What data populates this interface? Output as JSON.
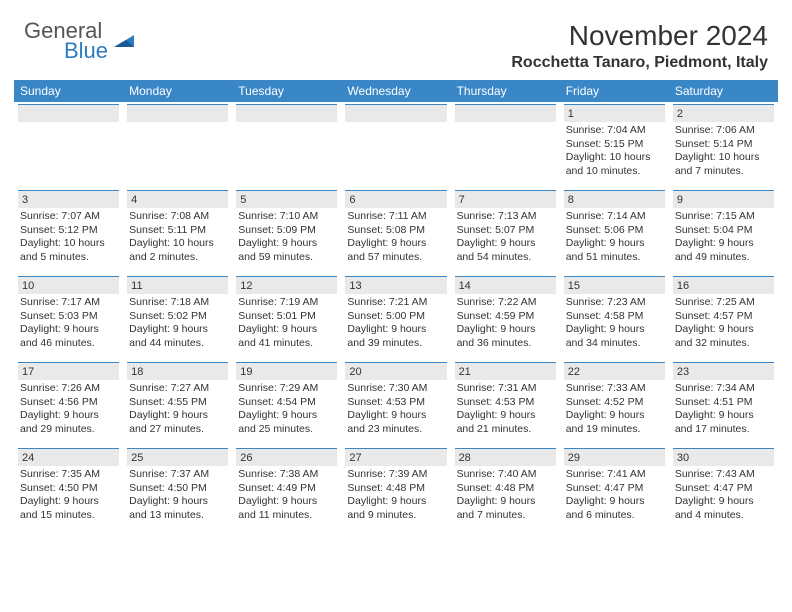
{
  "logo": {
    "general": "General",
    "blue": "Blue"
  },
  "header": {
    "month_title": "November 2024",
    "location": "Rocchetta Tanaro, Piedmont, Italy"
  },
  "colors": {
    "header_bar": "#3a87c8",
    "number_bar_bg": "#e9e9e9",
    "border_top": "#3a87c8",
    "text": "#333333",
    "logo_gray": "#555555",
    "logo_blue": "#2d7bc0",
    "background": "#ffffff"
  },
  "typography": {
    "month_title_fontsize": 28,
    "location_fontsize": 16,
    "location_weight": 700,
    "weekday_fontsize": 12,
    "daynum_fontsize": 11,
    "cell_fontsize": 10.5
  },
  "weekdays": [
    "Sunday",
    "Monday",
    "Tuesday",
    "Wednesday",
    "Thursday",
    "Friday",
    "Saturday"
  ],
  "weeks": [
    [
      {
        "day": "",
        "lines": []
      },
      {
        "day": "",
        "lines": []
      },
      {
        "day": "",
        "lines": []
      },
      {
        "day": "",
        "lines": []
      },
      {
        "day": "",
        "lines": []
      },
      {
        "day": "1",
        "lines": [
          "Sunrise: 7:04 AM",
          "Sunset: 5:15 PM",
          "Daylight: 10 hours and 10 minutes."
        ]
      },
      {
        "day": "2",
        "lines": [
          "Sunrise: 7:06 AM",
          "Sunset: 5:14 PM",
          "Daylight: 10 hours and 7 minutes."
        ]
      }
    ],
    [
      {
        "day": "3",
        "lines": [
          "Sunrise: 7:07 AM",
          "Sunset: 5:12 PM",
          "Daylight: 10 hours and 5 minutes."
        ]
      },
      {
        "day": "4",
        "lines": [
          "Sunrise: 7:08 AM",
          "Sunset: 5:11 PM",
          "Daylight: 10 hours and 2 minutes."
        ]
      },
      {
        "day": "5",
        "lines": [
          "Sunrise: 7:10 AM",
          "Sunset: 5:09 PM",
          "Daylight: 9 hours and 59 minutes."
        ]
      },
      {
        "day": "6",
        "lines": [
          "Sunrise: 7:11 AM",
          "Sunset: 5:08 PM",
          "Daylight: 9 hours and 57 minutes."
        ]
      },
      {
        "day": "7",
        "lines": [
          "Sunrise: 7:13 AM",
          "Sunset: 5:07 PM",
          "Daylight: 9 hours and 54 minutes."
        ]
      },
      {
        "day": "8",
        "lines": [
          "Sunrise: 7:14 AM",
          "Sunset: 5:06 PM",
          "Daylight: 9 hours and 51 minutes."
        ]
      },
      {
        "day": "9",
        "lines": [
          "Sunrise: 7:15 AM",
          "Sunset: 5:04 PM",
          "Daylight: 9 hours and 49 minutes."
        ]
      }
    ],
    [
      {
        "day": "10",
        "lines": [
          "Sunrise: 7:17 AM",
          "Sunset: 5:03 PM",
          "Daylight: 9 hours and 46 minutes."
        ]
      },
      {
        "day": "11",
        "lines": [
          "Sunrise: 7:18 AM",
          "Sunset: 5:02 PM",
          "Daylight: 9 hours and 44 minutes."
        ]
      },
      {
        "day": "12",
        "lines": [
          "Sunrise: 7:19 AM",
          "Sunset: 5:01 PM",
          "Daylight: 9 hours and 41 minutes."
        ]
      },
      {
        "day": "13",
        "lines": [
          "Sunrise: 7:21 AM",
          "Sunset: 5:00 PM",
          "Daylight: 9 hours and 39 minutes."
        ]
      },
      {
        "day": "14",
        "lines": [
          "Sunrise: 7:22 AM",
          "Sunset: 4:59 PM",
          "Daylight: 9 hours and 36 minutes."
        ]
      },
      {
        "day": "15",
        "lines": [
          "Sunrise: 7:23 AM",
          "Sunset: 4:58 PM",
          "Daylight: 9 hours and 34 minutes."
        ]
      },
      {
        "day": "16",
        "lines": [
          "Sunrise: 7:25 AM",
          "Sunset: 4:57 PM",
          "Daylight: 9 hours and 32 minutes."
        ]
      }
    ],
    [
      {
        "day": "17",
        "lines": [
          "Sunrise: 7:26 AM",
          "Sunset: 4:56 PM",
          "Daylight: 9 hours and 29 minutes."
        ]
      },
      {
        "day": "18",
        "lines": [
          "Sunrise: 7:27 AM",
          "Sunset: 4:55 PM",
          "Daylight: 9 hours and 27 minutes."
        ]
      },
      {
        "day": "19",
        "lines": [
          "Sunrise: 7:29 AM",
          "Sunset: 4:54 PM",
          "Daylight: 9 hours and 25 minutes."
        ]
      },
      {
        "day": "20",
        "lines": [
          "Sunrise: 7:30 AM",
          "Sunset: 4:53 PM",
          "Daylight: 9 hours and 23 minutes."
        ]
      },
      {
        "day": "21",
        "lines": [
          "Sunrise: 7:31 AM",
          "Sunset: 4:53 PM",
          "Daylight: 9 hours and 21 minutes."
        ]
      },
      {
        "day": "22",
        "lines": [
          "Sunrise: 7:33 AM",
          "Sunset: 4:52 PM",
          "Daylight: 9 hours and 19 minutes."
        ]
      },
      {
        "day": "23",
        "lines": [
          "Sunrise: 7:34 AM",
          "Sunset: 4:51 PM",
          "Daylight: 9 hours and 17 minutes."
        ]
      }
    ],
    [
      {
        "day": "24",
        "lines": [
          "Sunrise: 7:35 AM",
          "Sunset: 4:50 PM",
          "Daylight: 9 hours and 15 minutes."
        ]
      },
      {
        "day": "25",
        "lines": [
          "Sunrise: 7:37 AM",
          "Sunset: 4:50 PM",
          "Daylight: 9 hours and 13 minutes."
        ]
      },
      {
        "day": "26",
        "lines": [
          "Sunrise: 7:38 AM",
          "Sunset: 4:49 PM",
          "Daylight: 9 hours and 11 minutes."
        ]
      },
      {
        "day": "27",
        "lines": [
          "Sunrise: 7:39 AM",
          "Sunset: 4:48 PM",
          "Daylight: 9 hours and 9 minutes."
        ]
      },
      {
        "day": "28",
        "lines": [
          "Sunrise: 7:40 AM",
          "Sunset: 4:48 PM",
          "Daylight: 9 hours and 7 minutes."
        ]
      },
      {
        "day": "29",
        "lines": [
          "Sunrise: 7:41 AM",
          "Sunset: 4:47 PM",
          "Daylight: 9 hours and 6 minutes."
        ]
      },
      {
        "day": "30",
        "lines": [
          "Sunrise: 7:43 AM",
          "Sunset: 4:47 PM",
          "Daylight: 9 hours and 4 minutes."
        ]
      }
    ]
  ]
}
